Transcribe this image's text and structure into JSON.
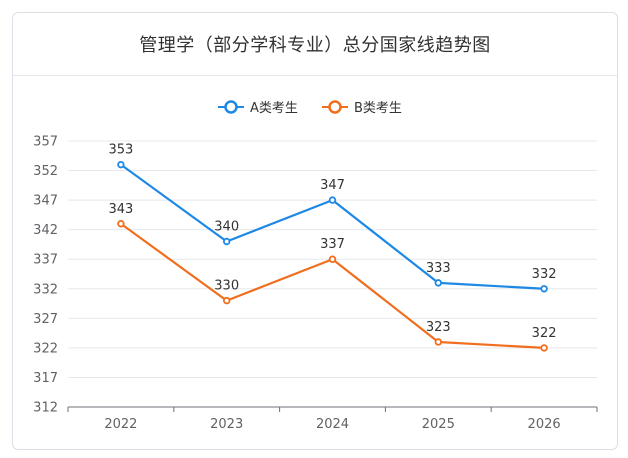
{
  "page": {
    "title": "管理学（部分学科专业）总分国家线趋势图"
  },
  "chart_data": {
    "type": "line",
    "title": "管理学（部分学科专业）总分国家线趋势图",
    "xlabel": "",
    "ylabel": "",
    "categories": [
      "2022",
      "2023",
      "2024",
      "2025",
      "2026"
    ],
    "series": [
      {
        "name": "A类考生",
        "color": "#1e88e5",
        "values": [
          353,
          340,
          347,
          333,
          332
        ]
      },
      {
        "name": "B类考生",
        "color": "#f06e1e",
        "values": [
          343,
          330,
          337,
          323,
          322
        ]
      }
    ],
    "ylim": [
      312,
      357
    ],
    "yticks": [
      "312",
      "317",
      "322",
      "327",
      "332",
      "337",
      "342",
      "347",
      "352",
      "357"
    ],
    "grid": true,
    "legend": "top-center",
    "data_labels": true
  }
}
